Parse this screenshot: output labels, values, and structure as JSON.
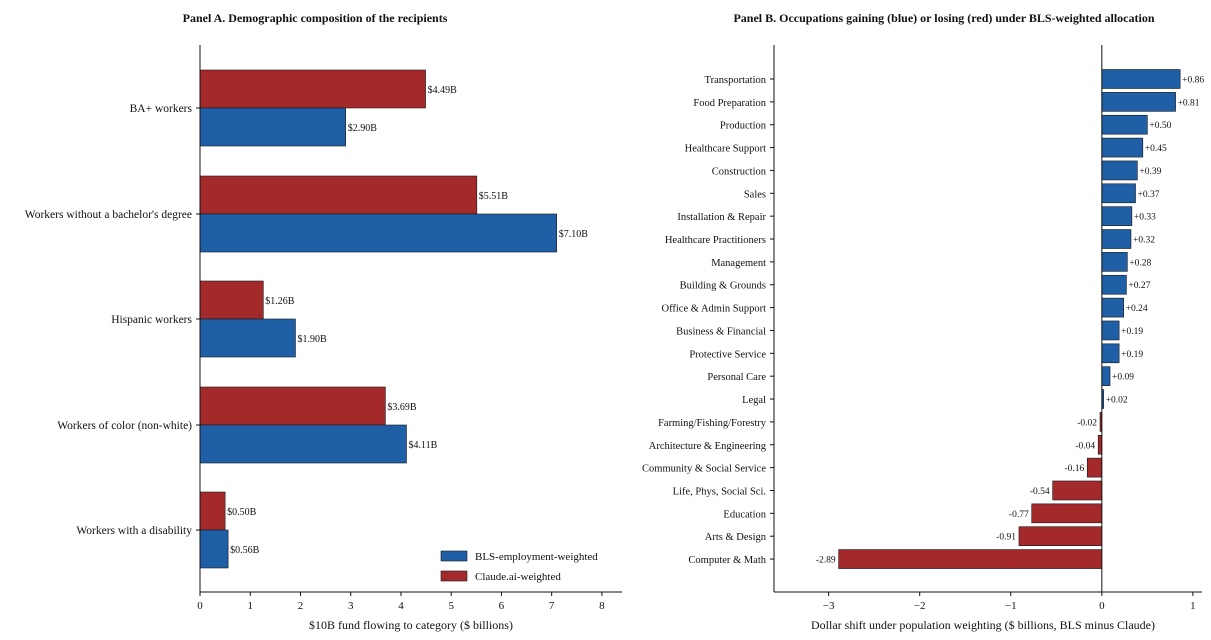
{
  "colors": {
    "bls": "#1f5fa6",
    "claude": "#a3292b",
    "edge": "#1a1a1a"
  },
  "chart_data": [
    {
      "type": "bar",
      "orientation": "horizontal",
      "title": "Panel A. Demographic composition of the recipients",
      "xlabel": "$10B fund flowing to category ($ billions)",
      "ylabel": "",
      "xlim": [
        0,
        8.4
      ],
      "xticks": [
        0,
        1,
        2,
        3,
        4,
        5,
        6,
        7,
        8
      ],
      "categories": [
        "BA+ workers",
        "Workers without a bachelor's degree",
        "Hispanic workers",
        "Workers of color (non-white)",
        "Workers with a disability"
      ],
      "series": [
        {
          "name": "BLS-employment-weighted",
          "color": "#1f5fa6",
          "values": [
            2.9,
            7.1,
            1.9,
            4.11,
            0.56
          ],
          "labels": [
            "$2.90B",
            "$7.10B",
            "$1.90B",
            "$4.11B",
            "$0.56B"
          ]
        },
        {
          "name": "Claude.ai-weighted",
          "color": "#a3292b",
          "values": [
            4.49,
            5.51,
            1.26,
            3.69,
            0.5
          ],
          "labels": [
            "$4.49B",
            "$5.51B",
            "$1.26B",
            "$3.69B",
            "$0.50B"
          ]
        }
      ],
      "legend": "lower-right",
      "grid": false
    },
    {
      "type": "bar",
      "orientation": "horizontal",
      "title": "Panel B. Occupations gaining (blue) or losing (red) under BLS-weighted allocation",
      "xlabel": "Dollar shift under population weighting ($ billions, BLS minus Claude)",
      "ylabel": "",
      "xlim": [
        -3.6,
        1.1
      ],
      "xticks": [
        -3,
        -2,
        -1,
        0,
        1
      ],
      "xtick_labels": [
        "−3",
        "−2",
        "−1",
        "0",
        "1"
      ],
      "categories": [
        "Transportation",
        "Food Preparation",
        "Production",
        "Healthcare Support",
        "Construction",
        "Sales",
        "Installation & Repair",
        "Healthcare Practitioners",
        "Management",
        "Building & Grounds",
        "Office & Admin Support",
        "Business & Financial",
        "Protective Service",
        "Personal Care",
        "Legal",
        "Farming/Fishing/Forestry",
        "Architecture & Engineering",
        "Community & Social Service",
        "Life, Phys, Social Sci.",
        "Education",
        "Arts & Design",
        "Computer & Math"
      ],
      "values": [
        0.86,
        0.81,
        0.5,
        0.45,
        0.39,
        0.37,
        0.33,
        0.32,
        0.28,
        0.27,
        0.24,
        0.19,
        0.19,
        0.09,
        0.02,
        -0.02,
        -0.04,
        -0.16,
        -0.54,
        -0.77,
        -0.91,
        -2.89
      ],
      "labels": [
        "+0.86",
        "+0.81",
        "+0.50",
        "+0.45",
        "+0.39",
        "+0.37",
        "+0.33",
        "+0.32",
        "+0.28",
        "+0.27",
        "+0.24",
        "+0.19",
        "+0.19",
        "+0.09",
        "+0.02",
        "-0.02",
        "-0.04",
        "-0.16",
        "-0.54",
        "-0.77",
        "-0.91",
        "-2.89"
      ],
      "grid": false
    }
  ]
}
